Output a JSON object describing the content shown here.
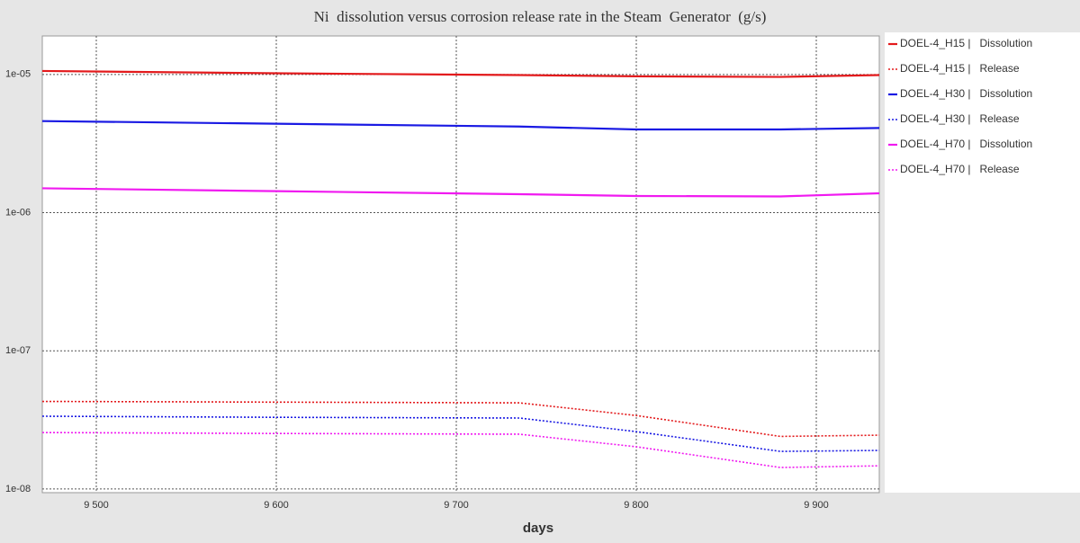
{
  "chart_data": {
    "type": "line",
    "title": "Ni  dissolution versus corrosion release rate in the Steam  Generator  (g/s)",
    "x_label": "days",
    "x": [
      9470,
      9600,
      9735,
      9800,
      9880,
      9935
    ],
    "xlim": [
      9470,
      9935
    ],
    "xticks": [
      {
        "value": 9500,
        "label": "9 500"
      },
      {
        "value": 9600,
        "label": "9 600"
      },
      {
        "value": 9700,
        "label": "9 700"
      },
      {
        "value": 9800,
        "label": "9 800"
      },
      {
        "value": 9900,
        "label": "9 900"
      }
    ],
    "ylim": [
      9.4e-09,
      1.9e-05
    ],
    "yticks": [
      {
        "value": 1e-05,
        "label": "1e-05"
      },
      {
        "value": 1e-06,
        "label": "1e-06"
      },
      {
        "value": 1e-07,
        "label": "1e-07"
      },
      {
        "value": 1e-08,
        "label": "1e-08"
      }
    ],
    "log_y": true,
    "grid": true,
    "legend": "right",
    "series": [
      {
        "name": "DOEL-4_H15 |   Dissolution",
        "color": "#e31a1c",
        "style": "solid",
        "values": [
          1.06e-05,
          1.02e-05,
          9.9e-06,
          9.7e-06,
          9.6e-06,
          9.9e-06
        ]
      },
      {
        "name": "DOEL-4_H15 |   Release",
        "color": "#e31a1c",
        "style": "dotted",
        "values": [
          4.3e-08,
          4.25e-08,
          4.2e-08,
          3.4e-08,
          2.4e-08,
          2.45e-08
        ]
      },
      {
        "name": "DOEL-4_H30 |   Dissolution",
        "color": "#1a1ae3",
        "style": "solid",
        "values": [
          4.6e-06,
          4.4e-06,
          4.2e-06,
          4e-06,
          4e-06,
          4.1e-06
        ]
      },
      {
        "name": "DOEL-4_H30 |   Release",
        "color": "#1a1ae3",
        "style": "dotted",
        "values": [
          3.36e-08,
          3.3e-08,
          3.26e-08,
          2.6e-08,
          1.87e-08,
          1.9e-08
        ]
      },
      {
        "name": "DOEL-4_H70 |   Dissolution",
        "color": "#f01af0",
        "style": "solid",
        "values": [
          1.5e-06,
          1.43e-06,
          1.36e-06,
          1.32e-06,
          1.31e-06,
          1.38e-06
        ]
      },
      {
        "name": "DOEL-4_H70 |   Release",
        "color": "#f01af0",
        "style": "dotted",
        "values": [
          2.56e-08,
          2.52e-08,
          2.49e-08,
          2.02e-08,
          1.43e-08,
          1.47e-08
        ]
      }
    ]
  }
}
